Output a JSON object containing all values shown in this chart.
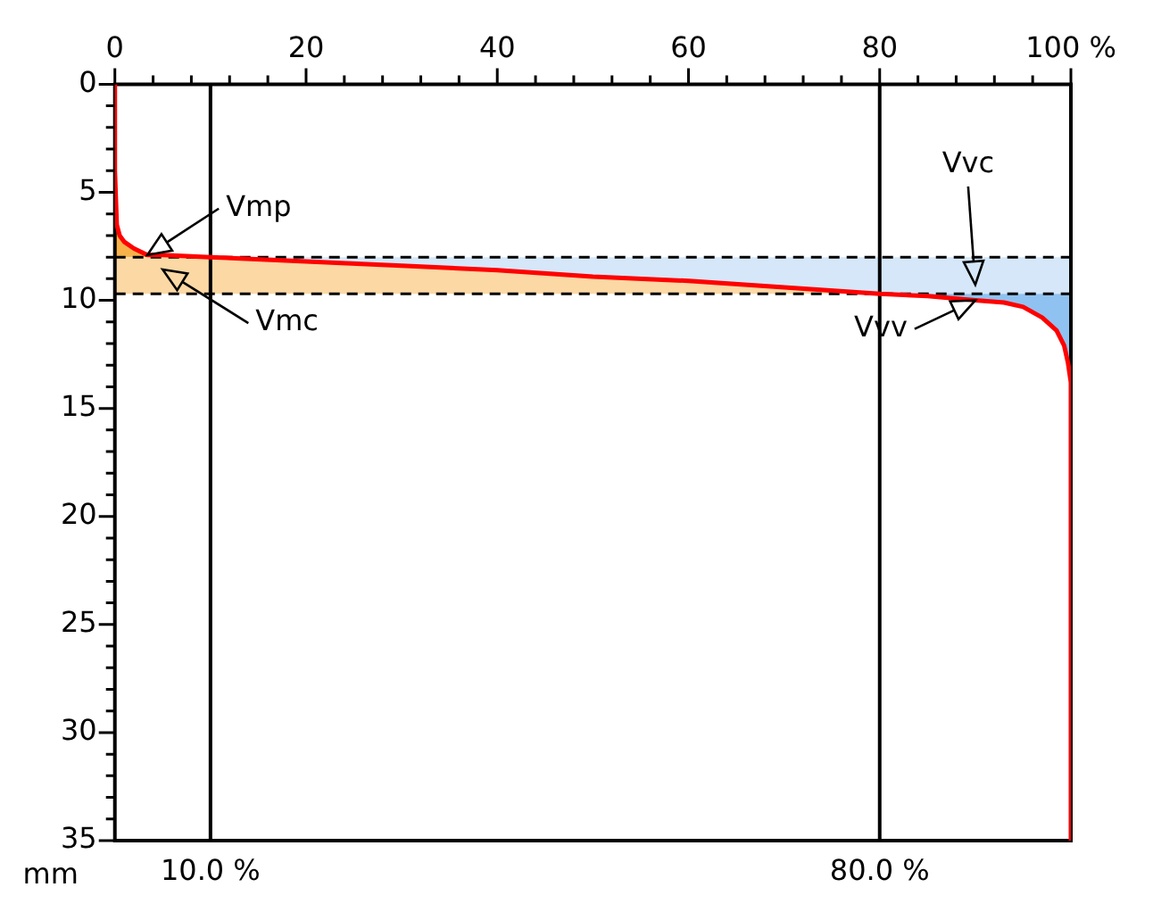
{
  "chart_data": {
    "type": "line",
    "ylabel": "mm",
    "xlim": [
      0,
      100
    ],
    "ylim": [
      35,
      0
    ],
    "xticks": [
      0,
      {
        "value": 4,
        "label": null
      },
      {
        "value": 8,
        "label": null
      },
      {
        "value": 12,
        "label": null
      },
      {
        "value": 16,
        "label": null
      },
      20,
      {
        "value": 24,
        "label": null
      },
      {
        "value": 28,
        "label": null
      },
      {
        "value": 32,
        "label": null
      },
      {
        "value": 36,
        "label": null
      },
      40,
      {
        "value": 44,
        "label": null
      },
      {
        "value": 48,
        "label": null
      },
      {
        "value": 52,
        "label": null
      },
      {
        "value": 56,
        "label": null
      },
      60,
      {
        "value": 64,
        "label": null
      },
      {
        "value": 68,
        "label": null
      },
      {
        "value": 72,
        "label": null
      },
      {
        "value": 76,
        "label": null
      },
      80,
      {
        "value": 84,
        "label": null
      },
      {
        "value": 88,
        "label": null
      },
      {
        "value": 92,
        "label": null
      },
      {
        "value": 96,
        "label": null
      },
      {
        "value": 100,
        "label": "100 %"
      }
    ],
    "yticks": [
      0,
      {
        "value": 1,
        "label": null
      },
      {
        "value": 2,
        "label": null
      },
      {
        "value": 3,
        "label": null
      },
      {
        "value": 4,
        "label": null
      },
      5,
      {
        "value": 6,
        "label": null
      },
      {
        "value": 7,
        "label": null
      },
      {
        "value": 8,
        "label": null
      },
      {
        "value": 9,
        "label": null
      },
      10,
      {
        "value": 11,
        "label": null
      },
      {
        "value": 12,
        "label": null
      },
      {
        "value": 13,
        "label": null
      },
      {
        "value": 14,
        "label": null
      },
      15,
      {
        "value": 16,
        "label": null
      },
      {
        "value": 17,
        "label": null
      },
      {
        "value": 18,
        "label": null
      },
      {
        "value": 19,
        "label": null
      },
      20,
      {
        "value": 21,
        "label": null
      },
      {
        "value": 22,
        "label": null
      },
      {
        "value": 23,
        "label": null
      },
      {
        "value": 24,
        "label": null
      },
      25,
      {
        "value": 26,
        "label": null
      },
      {
        "value": 27,
        "label": null
      },
      {
        "value": 28,
        "label": null
      },
      {
        "value": 29,
        "label": null
      },
      30,
      {
        "value": 31,
        "label": null
      },
      {
        "value": 32,
        "label": null
      },
      {
        "value": 33,
        "label": null
      },
      {
        "value": 34,
        "label": null
      },
      35
    ],
    "grid": false,
    "legend": false,
    "marker": "none",
    "series": [
      {
        "type": "area",
        "color": "#f7b24a",
        "x": [
          0,
          0.5,
          1,
          2,
          3.4,
          5,
          10,
          15,
          0
        ],
        "values": [
          6.7,
          7.0,
          7.3,
          7.6,
          7.9,
          7.9,
          8.0,
          8.0,
          8.0
        ]
      },
      {
        "type": "area",
        "color": "#fcd8a4",
        "x": [
          0,
          15,
          20,
          30,
          40,
          50,
          60,
          70,
          80,
          0
        ],
        "values": [
          8.0,
          8.0,
          8.2,
          8.4,
          8.6,
          8.9,
          9.1,
          9.4,
          9.7,
          9.7
        ]
      },
      {
        "type": "area",
        "color": "#d5e7f9",
        "x": [
          15,
          100,
          100,
          80,
          70,
          60,
          50,
          40,
          30,
          20
        ],
        "values": [
          8.0,
          8.0,
          9.7,
          9.7,
          9.4,
          9.1,
          8.9,
          8.6,
          8.4,
          8.2
        ]
      },
      {
        "type": "area",
        "color": "#8fc2f0",
        "x": [
          80,
          100,
          100,
          99.7,
          99.3,
          98.5,
          97,
          95,
          93,
          90,
          85
        ],
        "values": [
          9.7,
          9.7,
          13.8,
          12.9,
          12.1,
          11.4,
          10.8,
          10.3,
          10.1,
          10.0,
          9.8
        ]
      },
      {
        "color": "#ff0000",
        "x": [
          0,
          0,
          0.2,
          0.5,
          1,
          2,
          3.4,
          5,
          10,
          20,
          30,
          40,
          50,
          60,
          70,
          80,
          85,
          90,
          93,
          95,
          97,
          98.5,
          99.3,
          99.7,
          100,
          100
        ],
        "values": [
          0,
          4,
          6.5,
          7.0,
          7.3,
          7.6,
          7.9,
          7.9,
          8.0,
          8.2,
          8.4,
          8.6,
          8.9,
          9.1,
          9.4,
          9.7,
          9.8,
          10.0,
          10.1,
          10.3,
          10.8,
          11.4,
          12.1,
          12.9,
          13.8,
          35
        ]
      }
    ],
    "ref_lines": [
      {
        "axis": "x",
        "value": 10,
        "label": "10.0 %",
        "color": "#000000"
      },
      {
        "axis": "x",
        "value": 80,
        "label": "80.0 %",
        "color": "#000000"
      },
      {
        "axis": "y",
        "value": 8.0,
        "color": "#000000",
        "line_style": "dashed"
      },
      {
        "axis": "y",
        "value": 9.7,
        "color": "#000000",
        "line_style": "dashed"
      }
    ],
    "annotations": [
      {
        "text": "Vmp",
        "x": 3.4,
        "y": 7.9
      },
      "Vmc",
      "Vvc",
      {
        "text": "Vvv",
        "x": 90,
        "y": 10.0
      }
    ]
  }
}
